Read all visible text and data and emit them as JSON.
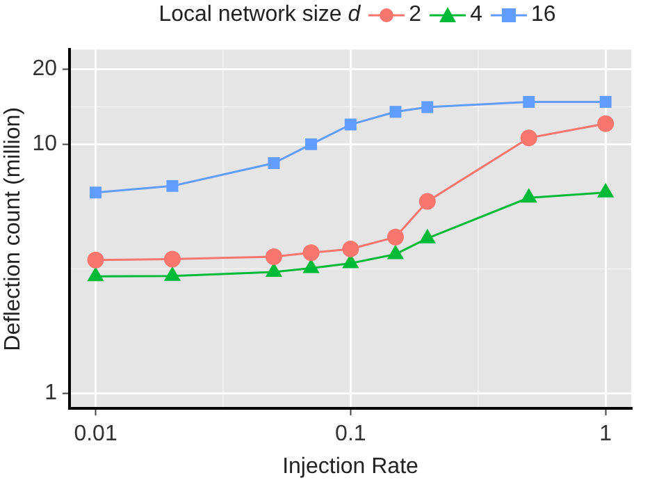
{
  "chart_data": {
    "type": "line",
    "xlabel": "Injection Rate",
    "ylabel": "Deflection count (million)",
    "legend_title": "Local network size d",
    "legend": "top",
    "log": "xy",
    "grid": true,
    "x": [
      0.01,
      0.02,
      0.05,
      0.07,
      0.1,
      0.15,
      0.2,
      0.5,
      1
    ],
    "xlim": [
      0.0079,
      1.26
    ],
    "xticks": [
      0.01,
      0.1,
      1
    ],
    "ylim": [
      0.87,
      24
    ],
    "yticks": [
      1,
      10,
      20
    ],
    "series": [
      {
        "name": "2",
        "color": "#f8766d",
        "marker": "circle",
        "values": [
          3.43,
          3.46,
          3.54,
          3.67,
          3.8,
          4.24,
          5.9,
          10.6,
          12.1
        ]
      },
      {
        "name": "4",
        "color": "#00ba38",
        "marker": "triangle",
        "values": [
          2.95,
          2.96,
          3.07,
          3.18,
          3.33,
          3.62,
          4.19,
          6.1,
          6.4
        ]
      },
      {
        "name": "16",
        "color": "#619cff",
        "marker": "square",
        "values": [
          6.4,
          6.8,
          8.4,
          10,
          12,
          13.5,
          14.1,
          14.8,
          14.8
        ]
      }
    ]
  }
}
